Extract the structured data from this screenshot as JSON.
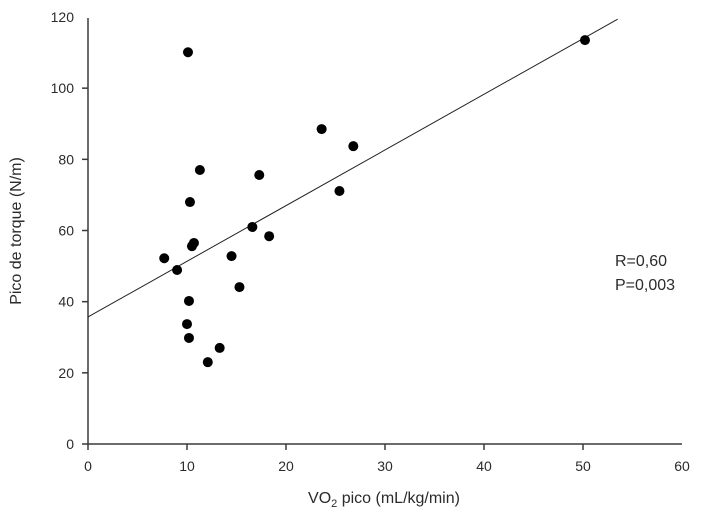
{
  "chart_data": {
    "type": "scatter",
    "title": "",
    "xlabel": "VO",
    "xlabel_sub": "2",
    "xlabel_rest": " pico (mL/kg/min)",
    "ylabel": "Pico de torque (N/m)",
    "xlim": [
      0,
      60
    ],
    "ylim": [
      0,
      120
    ],
    "xticks": [
      0,
      10,
      20,
      30,
      40,
      50,
      60
    ],
    "yticks": [
      0,
      20,
      40,
      60,
      80,
      100,
      120
    ],
    "grid": false,
    "series": [
      {
        "name": "points",
        "points": [
          {
            "x": 10.1,
            "y": 110.1
          },
          {
            "x": 11.3,
            "y": 77.0
          },
          {
            "x": 10.3,
            "y": 68.0
          },
          {
            "x": 17.3,
            "y": 75.6
          },
          {
            "x": 23.6,
            "y": 88.5
          },
          {
            "x": 26.8,
            "y": 83.7
          },
          {
            "x": 25.4,
            "y": 71.1
          },
          {
            "x": 16.6,
            "y": 61.0
          },
          {
            "x": 18.3,
            "y": 58.4
          },
          {
            "x": 10.5,
            "y": 55.6
          },
          {
            "x": 10.7,
            "y": 56.5
          },
          {
            "x": 7.7,
            "y": 52.2
          },
          {
            "x": 14.5,
            "y": 52.8
          },
          {
            "x": 9.0,
            "y": 48.9
          },
          {
            "x": 15.3,
            "y": 44.1
          },
          {
            "x": 10.2,
            "y": 40.2
          },
          {
            "x": 10.0,
            "y": 33.7
          },
          {
            "x": 10.2,
            "y": 29.8
          },
          {
            "x": 13.3,
            "y": 27.0
          },
          {
            "x": 12.1,
            "y": 23.0
          },
          {
            "x": 50.2,
            "y": 113.5
          }
        ]
      }
    ],
    "regression_line": {
      "x0": 0,
      "y0": 35.7,
      "x1": 53.5,
      "y1": 119.4
    },
    "annotations": [
      "R=0,60",
      "P=0,003"
    ]
  }
}
